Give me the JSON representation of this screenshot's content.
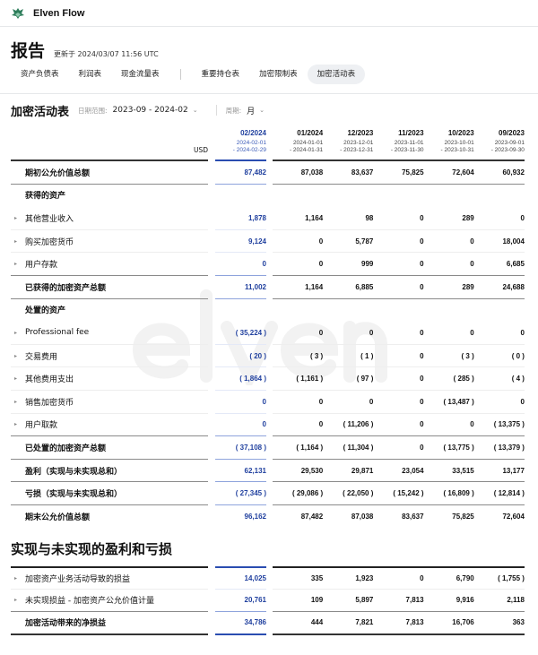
{
  "app": {
    "name": "Elven Flow",
    "watermark": "elven"
  },
  "page": {
    "title": "报告",
    "updated": "更新于 2024/03/07 11:56 UTC"
  },
  "tabs": [
    {
      "label": "资产负债表"
    },
    {
      "label": "利润表"
    },
    {
      "label": "现金流量表"
    },
    {
      "label": "重要持仓表"
    },
    {
      "label": "加密限制表"
    },
    {
      "label": "加密活动表",
      "active": true
    }
  ],
  "filter": {
    "title": "加密活动表",
    "date_label": "日期范围:",
    "date_value": "2023-09 - 2024-02",
    "period_label": "周期:",
    "period_value": "月"
  },
  "table": {
    "currency": "USD",
    "columns": [
      {
        "month": "02/2024",
        "from": "2024-02-01",
        "to": "- 2024-02-29"
      },
      {
        "month": "01/2024",
        "from": "2024-01-01",
        "to": "- 2024-01-31"
      },
      {
        "month": "12/2023",
        "from": "2023-12-01",
        "to": "- 2023-12-31"
      },
      {
        "month": "11/2023",
        "from": "2023-11-01",
        "to": "- 2023-11-30"
      },
      {
        "month": "10/2023",
        "from": "2023-10-01",
        "to": "- 2023-10-31"
      },
      {
        "month": "09/2023",
        "from": "2023-09-01",
        "to": "- 2023-09-30"
      }
    ],
    "rows": [
      {
        "label": "期初公允价值总额",
        "type": "total",
        "values": [
          "87,482",
          "87,038",
          "83,637",
          "75,825",
          "72,604",
          "60,932"
        ]
      },
      {
        "label": "获得的资产",
        "type": "heading",
        "values": [
          "",
          "",
          "",
          "",
          "",
          ""
        ]
      },
      {
        "label": "其他营业收入",
        "type": "item",
        "values": [
          "1,878",
          "1,164",
          "98",
          "0",
          "289",
          "0"
        ]
      },
      {
        "label": "购买加密货币",
        "type": "item",
        "values": [
          "9,124",
          "0",
          "5,787",
          "0",
          "0",
          "18,004"
        ]
      },
      {
        "label": "用户存款",
        "type": "item",
        "values": [
          "0",
          "0",
          "999",
          "0",
          "0",
          "6,685"
        ]
      },
      {
        "label": "已获得的加密资产总额",
        "type": "total",
        "values": [
          "11,002",
          "1,164",
          "6,885",
          "0",
          "289",
          "24,688"
        ]
      },
      {
        "label": "处置的资产",
        "type": "heading",
        "values": [
          "",
          "",
          "",
          "",
          "",
          ""
        ]
      },
      {
        "label": "Professional fee",
        "type": "item",
        "values": [
          "( 35,224 )",
          "0",
          "0",
          "0",
          "0",
          "0"
        ]
      },
      {
        "label": "交易费用",
        "type": "item",
        "values": [
          "( 20 )",
          "( 3 )",
          "( 1 )",
          "0",
          "( 3 )",
          "( 0 )"
        ]
      },
      {
        "label": "其他费用支出",
        "type": "item",
        "values": [
          "( 1,864 )",
          "( 1,161 )",
          "( 97 )",
          "0",
          "( 285 )",
          "( 4 )"
        ]
      },
      {
        "label": "销售加密货币",
        "type": "item",
        "values": [
          "0",
          "0",
          "0",
          "0",
          "( 13,487 )",
          "0"
        ]
      },
      {
        "label": "用户取款",
        "type": "item",
        "values": [
          "0",
          "0",
          "( 11,206 )",
          "0",
          "0",
          "( 13,375 )"
        ]
      },
      {
        "label": "已处置的加密资产总额",
        "type": "total",
        "values": [
          "( 37,108 )",
          "( 1,164 )",
          "( 11,304 )",
          "0",
          "( 13,775 )",
          "( 13,379 )"
        ]
      },
      {
        "label": "盈利（实现与未实现总和）",
        "type": "total",
        "values": [
          "62,131",
          "29,530",
          "29,871",
          "23,054",
          "33,515",
          "13,177"
        ]
      },
      {
        "label": "亏损（实现与未实现总和）",
        "type": "total",
        "values": [
          "( 27,345 )",
          "( 29,086 )",
          "( 22,050 )",
          "( 15,242 )",
          "( 16,809 )",
          "( 12,814 )"
        ]
      },
      {
        "label": "期末公允价值总额",
        "type": "total",
        "values": [
          "96,162",
          "87,482",
          "87,038",
          "83,637",
          "75,825",
          "72,604"
        ]
      }
    ]
  },
  "section2": {
    "title": "实现与未实现的盈利和亏损",
    "rows": [
      {
        "label": "加密资产业务活动导致的损益",
        "type": "item",
        "values": [
          "14,025",
          "335",
          "1,923",
          "0",
          "6,790",
          "( 1,755 )"
        ]
      },
      {
        "label": "未实现损益 - 加密资产公允价值计量",
        "type": "item",
        "values": [
          "20,761",
          "109",
          "5,897",
          "7,813",
          "9,916",
          "2,118"
        ]
      },
      {
        "label": "加密活动带来的净损益",
        "type": "total",
        "values": [
          "34,786",
          "444",
          "7,821",
          "7,813",
          "16,706",
          "363"
        ]
      }
    ]
  },
  "colors": {
    "accent": "#1f3f9e",
    "brand": "#2e7d5b",
    "active_tab_bg": "#eef0f3"
  }
}
